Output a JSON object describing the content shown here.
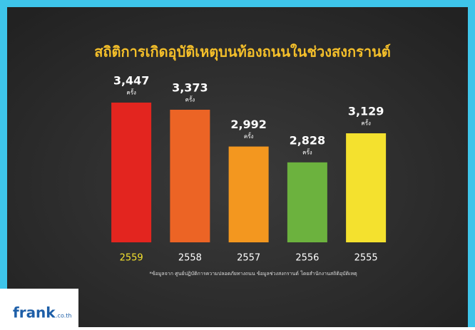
{
  "chart_data": {
    "type": "bar",
    "title": "สถิติการเกิดอุบัติเหตุบนท้องถนนในช่วงสงกรานต์",
    "categories": [
      "2559",
      "2558",
      "2557",
      "2556",
      "2555"
    ],
    "values": [
      3447,
      3373,
      2992,
      2828,
      3129
    ],
    "value_labels": [
      "3,447",
      "3,373",
      "2,992",
      "2,828",
      "3,129"
    ],
    "unit": "ครั้ง",
    "colors": [
      "#e3251f",
      "#ec6425",
      "#f3971f",
      "#6cb23e",
      "#f4e12e"
    ],
    "ylim": [
      2000,
      4000
    ],
    "note": "*ข้อมูลจาก ศูนย์ปฏิบัติการความปลอดภัยทางถนน ข้อมูลช่วงสงกรานต์ โดยสำนักงานสถิติอุบัติเหตุ"
  },
  "logo": {
    "name": "frank",
    "domain": ".co.th"
  }
}
